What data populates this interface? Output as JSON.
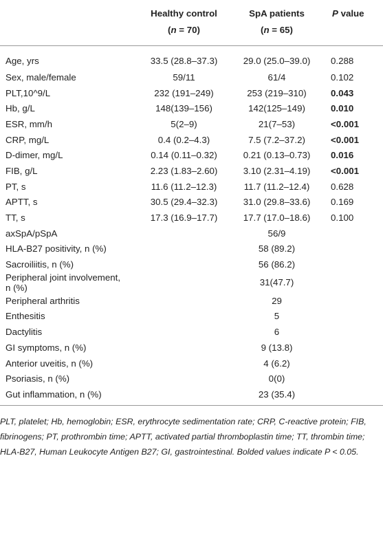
{
  "table": {
    "header": [
      {
        "line1": "Healthy control",
        "line2": [
          "(",
          "n",
          " = 70)"
        ]
      },
      {
        "line1": "SpA patients",
        "line2": [
          "(",
          "n",
          " = 65)"
        ]
      },
      {
        "line1": [
          "P",
          " value"
        ]
      }
    ],
    "rows": [
      {
        "label": "Age, yrs",
        "hc": "33.5 (28.8–37.3)",
        "spa": "29.0 (25.0–39.0)",
        "p": "0.288",
        "bold": false
      },
      {
        "label": "Sex, male/female",
        "hc": "59/11",
        "spa": "61/4",
        "p": "0.102",
        "bold": false
      },
      {
        "label": "PLT,10^9/L",
        "hc": "232 (191–249)",
        "spa": "253 (219–310)",
        "p": "0.043",
        "bold": true
      },
      {
        "label": "Hb, g/L",
        "hc": "148(139–156)",
        "spa": "142(125–149)",
        "p": "0.010",
        "bold": true
      },
      {
        "label": "ESR, mm/h",
        "hc": "5(2–9)",
        "spa": "21(7–53)",
        "p": "<0.001",
        "bold": true
      },
      {
        "label": "CRP, mg/L",
        "hc": "0.4 (0.2–4.3)",
        "spa": "7.5 (7.2–37.2)",
        "p": "<0.001",
        "bold": true
      },
      {
        "label": "D-dimer, mg/L",
        "hc": "0.14 (0.11–0.32)",
        "spa": "0.21 (0.13–0.73)",
        "p": "0.016",
        "bold": true
      },
      {
        "label": "FIB, g/L",
        "hc": "2.23 (1.83–2.60)",
        "spa": "3.10 (2.31–4.19)",
        "p": "<0.001",
        "bold": true
      },
      {
        "label": "PT, s",
        "hc": "11.6 (11.2–12.3)",
        "spa": "11.7 (11.2–12.4)",
        "p": "0.628",
        "bold": false
      },
      {
        "label": "APTT, s",
        "hc": "30.5 (29.4–32.3)",
        "spa": "31.0 (29.8–33.6)",
        "p": "0.169",
        "bold": false
      },
      {
        "label": "TT, s",
        "hc": "17.3 (16.9–17.7)",
        "spa": "17.7 (17.0–18.6)",
        "p": "0.100",
        "bold": false
      },
      {
        "label": "axSpA/pSpA",
        "spa": "56/9"
      },
      {
        "label": "HLA-B27 positivity, n (%)",
        "spa": "58 (89.2)"
      },
      {
        "label": "Sacroiliitis, n (%)",
        "spa": "56 (86.2)"
      },
      {
        "label": "Peripheral joint involvement, n (%)",
        "spa": "31(47.7)"
      },
      {
        "label": "Peripheral arthritis",
        "spa": "29"
      },
      {
        "label": "Enthesitis",
        "spa": "5"
      },
      {
        "label": "Dactylitis",
        "spa": "6"
      },
      {
        "label": "GI symptoms, n (%)",
        "spa": "9 (13.8)"
      },
      {
        "label": "Anterior uveitis, n (%)",
        "spa": "4 (6.2)"
      },
      {
        "label": "Psoriasis, n (%)",
        "spa": "0(0)"
      },
      {
        "label": "Gut inflammation, n (%)",
        "spa": "23 (35.4)"
      }
    ],
    "footnote": "PLT, platelet; Hb, hemoglobin; ESR, erythrocyte sedimentation rate; CRP, C-reactive protein; FIB, fibrinogens; PT, prothrombin time; APTT, activated partial thromboplastin time; TT, thrombin time; HLA-B27, Human Leukocyte Antigen B27; GI, gastrointestinal. Bolded values indicate P < 0.05."
  }
}
